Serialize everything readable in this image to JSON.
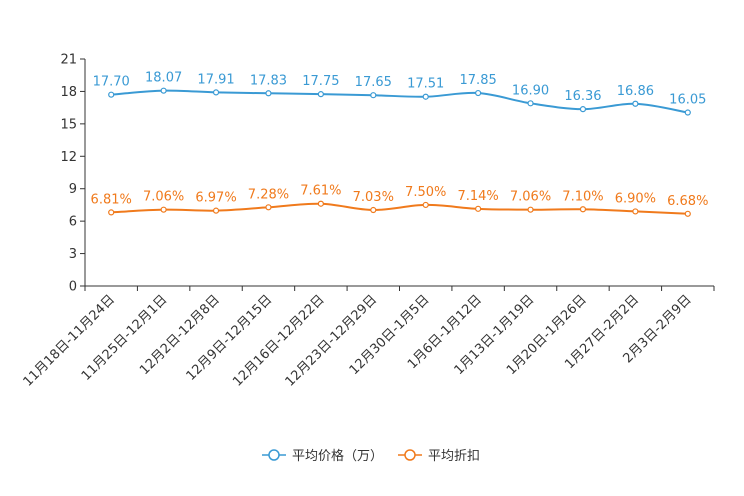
{
  "chart_data": {
    "type": "line",
    "title": "",
    "xlabel": "",
    "ylabel": "",
    "ylim": [
      0,
      21
    ],
    "yticks": [
      0,
      3,
      6,
      9,
      12,
      15,
      18,
      21
    ],
    "legend_position": "bottom",
    "categories": [
      "11月18日-11月24日",
      "11月25日-12月1日",
      "12月2日-12月8日",
      "12月9日-12月15日",
      "12月16日-12月22日",
      "12月23日-12月29日",
      "12月30日-1月5日",
      "1月6日-1月12日",
      "1月13日-1月19日",
      "1月20日-1月26日",
      "1月27日-2月2日",
      "2月3日-2月9日"
    ],
    "series": [
      {
        "name": "平均价格（万）",
        "color": "#3a9ad4",
        "values": [
          17.7,
          18.07,
          17.91,
          17.83,
          17.75,
          17.65,
          17.51,
          17.85,
          16.9,
          16.36,
          16.86,
          16.05
        ],
        "labels": [
          "17.70",
          "18.07",
          "17.91",
          "17.83",
          "17.75",
          "17.65",
          "17.51",
          "17.85",
          "16.90",
          "16.36",
          "16.86",
          "16.05"
        ]
      },
      {
        "name": "平均折扣",
        "color": "#f07a1c",
        "values": [
          6.81,
          7.06,
          6.97,
          7.28,
          7.61,
          7.03,
          7.5,
          7.14,
          7.06,
          7.1,
          6.9,
          6.68
        ],
        "labels": [
          "6.81%",
          "7.06%",
          "6.97%",
          "7.28%",
          "7.61%",
          "7.03%",
          "7.50%",
          "7.14%",
          "7.06%",
          "7.10%",
          "6.90%",
          "6.68%"
        ]
      }
    ]
  }
}
